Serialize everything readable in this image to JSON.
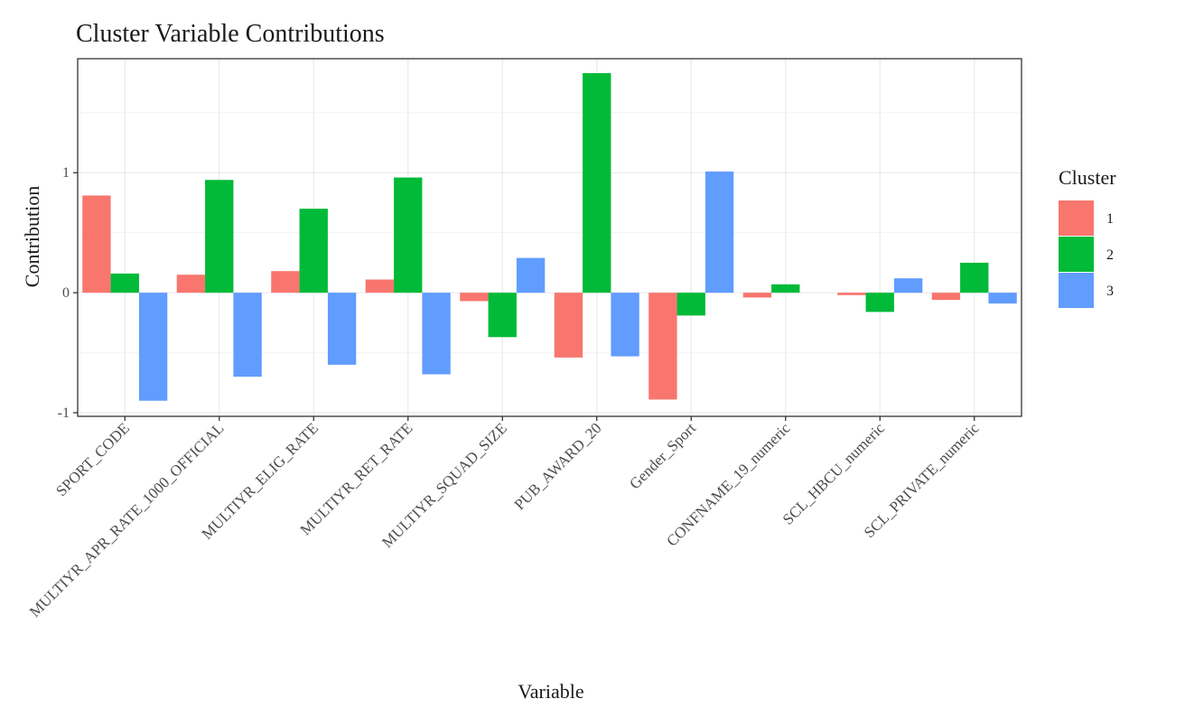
{
  "chart_data": {
    "type": "bar",
    "title": "Cluster Variable Contributions",
    "xlabel": "Variable",
    "ylabel": "Contribution",
    "ylim": [
      -1.03,
      1.95
    ],
    "yticks": [
      -1,
      0,
      1
    ],
    "grid": true,
    "legend": {
      "title": "Cluster",
      "placement": "right"
    },
    "categories": [
      "SPORT_CODE",
      "MULTIYR_APR_RATE_1000_OFFICIAL",
      "MULTIYR_ELIG_RATE",
      "MULTIYR_RET_RATE",
      "MULTIYR_SQUAD_SIZE",
      "PUB_AWARD_20",
      "Gender_Sport",
      "CONFNAME_19_numeric",
      "SCL_HBCU_numeric",
      "SCL_PRIVATE_numeric"
    ],
    "series": [
      {
        "name": "1",
        "color": "#F8766D",
        "values": [
          0.81,
          0.15,
          0.18,
          0.11,
          -0.07,
          -0.54,
          -0.89,
          -0.04,
          -0.02,
          -0.06
        ]
      },
      {
        "name": "2",
        "color": "#00BA38",
        "values": [
          0.16,
          0.94,
          0.7,
          0.96,
          -0.37,
          1.83,
          -0.19,
          0.07,
          -0.16,
          0.25
        ]
      },
      {
        "name": "3",
        "color": "#619CFF",
        "values": [
          -0.9,
          -0.7,
          -0.6,
          -0.68,
          0.29,
          -0.53,
          1.01,
          0.0,
          0.12,
          -0.09
        ]
      }
    ]
  }
}
